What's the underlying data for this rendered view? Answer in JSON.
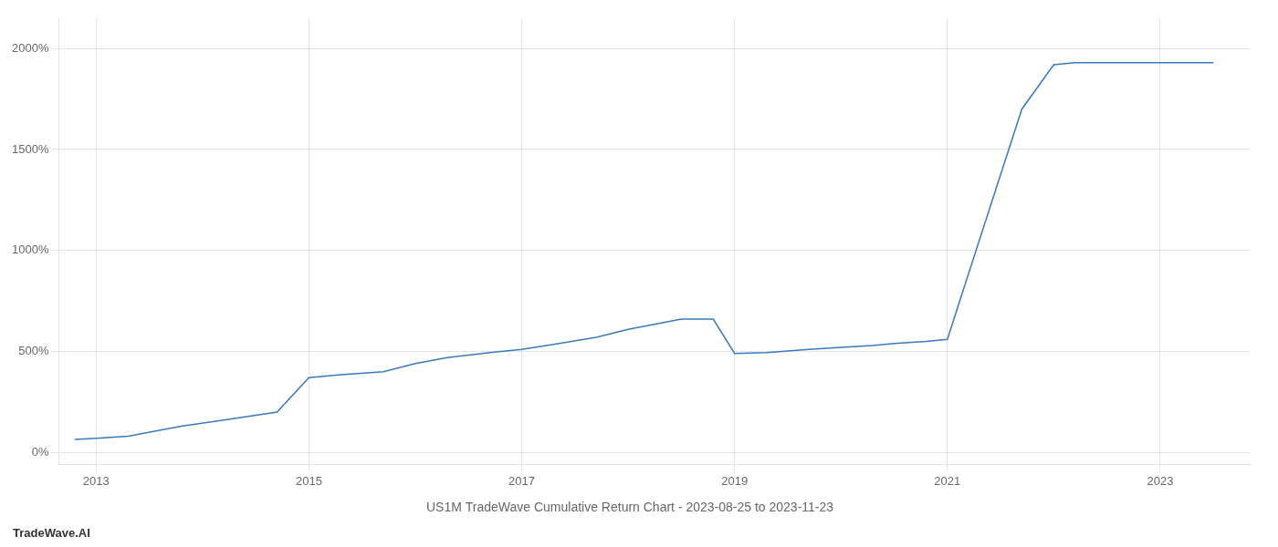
{
  "chart_data": {
    "type": "line",
    "title": "US1M TradeWave Cumulative Return Chart - 2023-08-25 to 2023-11-23",
    "annotations": [
      "TradeWave.AI"
    ],
    "color": "#3a7abf",
    "x": [
      2012.8,
      2013.0,
      2013.3,
      2013.8,
      2014.2,
      2014.7,
      2015.0,
      2015.3,
      2015.7,
      2016.0,
      2016.3,
      2016.7,
      2017.0,
      2017.3,
      2017.7,
      2018.0,
      2018.3,
      2018.5,
      2018.8,
      2019.0,
      2019.3,
      2019.7,
      2020.0,
      2020.3,
      2020.5,
      2020.8,
      2021.0,
      2021.3,
      2021.7,
      2022.0,
      2022.2,
      2022.5,
      2022.8,
      2023.0,
      2023.5
    ],
    "values": [
      65,
      70,
      80,
      130,
      160,
      200,
      370,
      385,
      400,
      440,
      470,
      495,
      510,
      535,
      570,
      610,
      640,
      660,
      660,
      490,
      495,
      510,
      520,
      530,
      540,
      550,
      560,
      1050,
      1700,
      1920,
      1930,
      1930,
      1930,
      1930,
      1930
    ],
    "xlim": [
      2012.65,
      2023.85
    ],
    "xticks": [
      2013,
      2015,
      2017,
      2019,
      2021,
      2023
    ],
    "ylim": [
      -60,
      2150
    ],
    "yticks": [
      {
        "value": 0,
        "label": "0%"
      },
      {
        "value": 500,
        "label": "500%"
      },
      {
        "value": 1000,
        "label": "1000%"
      },
      {
        "value": 1500,
        "label": "1500%"
      },
      {
        "value": 2000,
        "label": "2000%"
      }
    ],
    "grid": true
  }
}
